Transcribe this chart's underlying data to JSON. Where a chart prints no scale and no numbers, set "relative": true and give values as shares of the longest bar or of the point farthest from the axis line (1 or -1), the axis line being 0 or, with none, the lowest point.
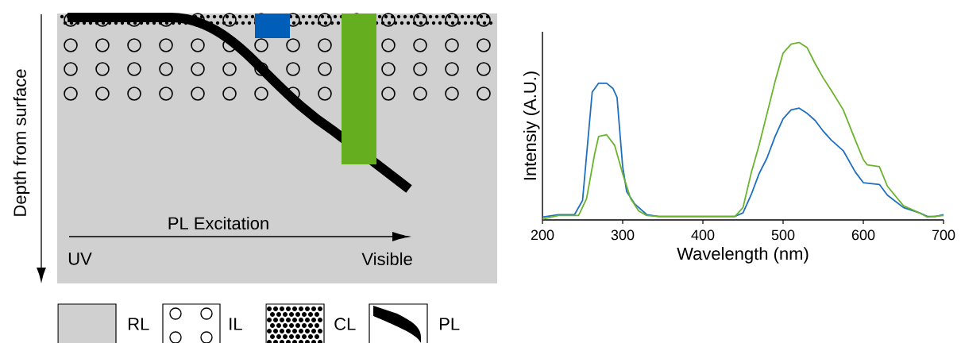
{
  "chart_data": [
    {
      "type": "other",
      "ylabel": "Depth from surface",
      "xlabel": "PL Excitation",
      "annotations": [
        "UV",
        "Visible",
        "RL",
        "IL",
        "CL",
        "PL"
      ]
    },
    {
      "type": "line",
      "relative": true,
      "xlabel": "Wavelength (nm)",
      "ylabel": "Intensiy (A.U.)",
      "xlim": [
        200,
        700
      ],
      "xticks": [
        200,
        300,
        400,
        500,
        600,
        700
      ],
      "series": [
        {
          "color": "#1f6fc0",
          "x": [
            200,
            220,
            240,
            250,
            262,
            270,
            280,
            288,
            293,
            300,
            305,
            315,
            330,
            345,
            440,
            450,
            460,
            470,
            480,
            490,
            500,
            510,
            520,
            530,
            540,
            550,
            560,
            575,
            590,
            600,
            620,
            630,
            650,
            670,
            680,
            690,
            700
          ],
          "values": [
            0.016,
            0.03,
            0.03,
            0.11,
            0.72,
            0.77,
            0.77,
            0.74,
            0.69,
            0.3,
            0.16,
            0.09,
            0.03,
            0.02,
            0.02,
            0.04,
            0.14,
            0.26,
            0.35,
            0.47,
            0.57,
            0.62,
            0.63,
            0.6,
            0.56,
            0.5,
            0.45,
            0.39,
            0.27,
            0.21,
            0.2,
            0.14,
            0.07,
            0.04,
            0.02,
            0.02,
            0.03
          ]
        },
        {
          "color": "#6ab42d",
          "x": [
            200,
            220,
            245,
            255,
            265,
            270,
            280,
            290,
            300,
            310,
            320,
            330,
            345,
            440,
            450,
            460,
            470,
            480,
            490,
            500,
            510,
            520,
            530,
            540,
            550,
            560,
            575,
            590,
            600,
            605,
            620,
            630,
            650,
            670,
            680,
            700
          ],
          "values": [
            0.005,
            0.025,
            0.025,
            0.12,
            0.37,
            0.47,
            0.48,
            0.42,
            0.26,
            0.12,
            0.05,
            0.025,
            0.02,
            0.02,
            0.07,
            0.26,
            0.42,
            0.6,
            0.78,
            0.94,
            0.99,
            1,
            0.97,
            0.88,
            0.8,
            0.73,
            0.62,
            0.45,
            0.34,
            0.31,
            0.3,
            0.19,
            0.08,
            0.04,
            0.016,
            0.025
          ]
        }
      ]
    }
  ]
}
